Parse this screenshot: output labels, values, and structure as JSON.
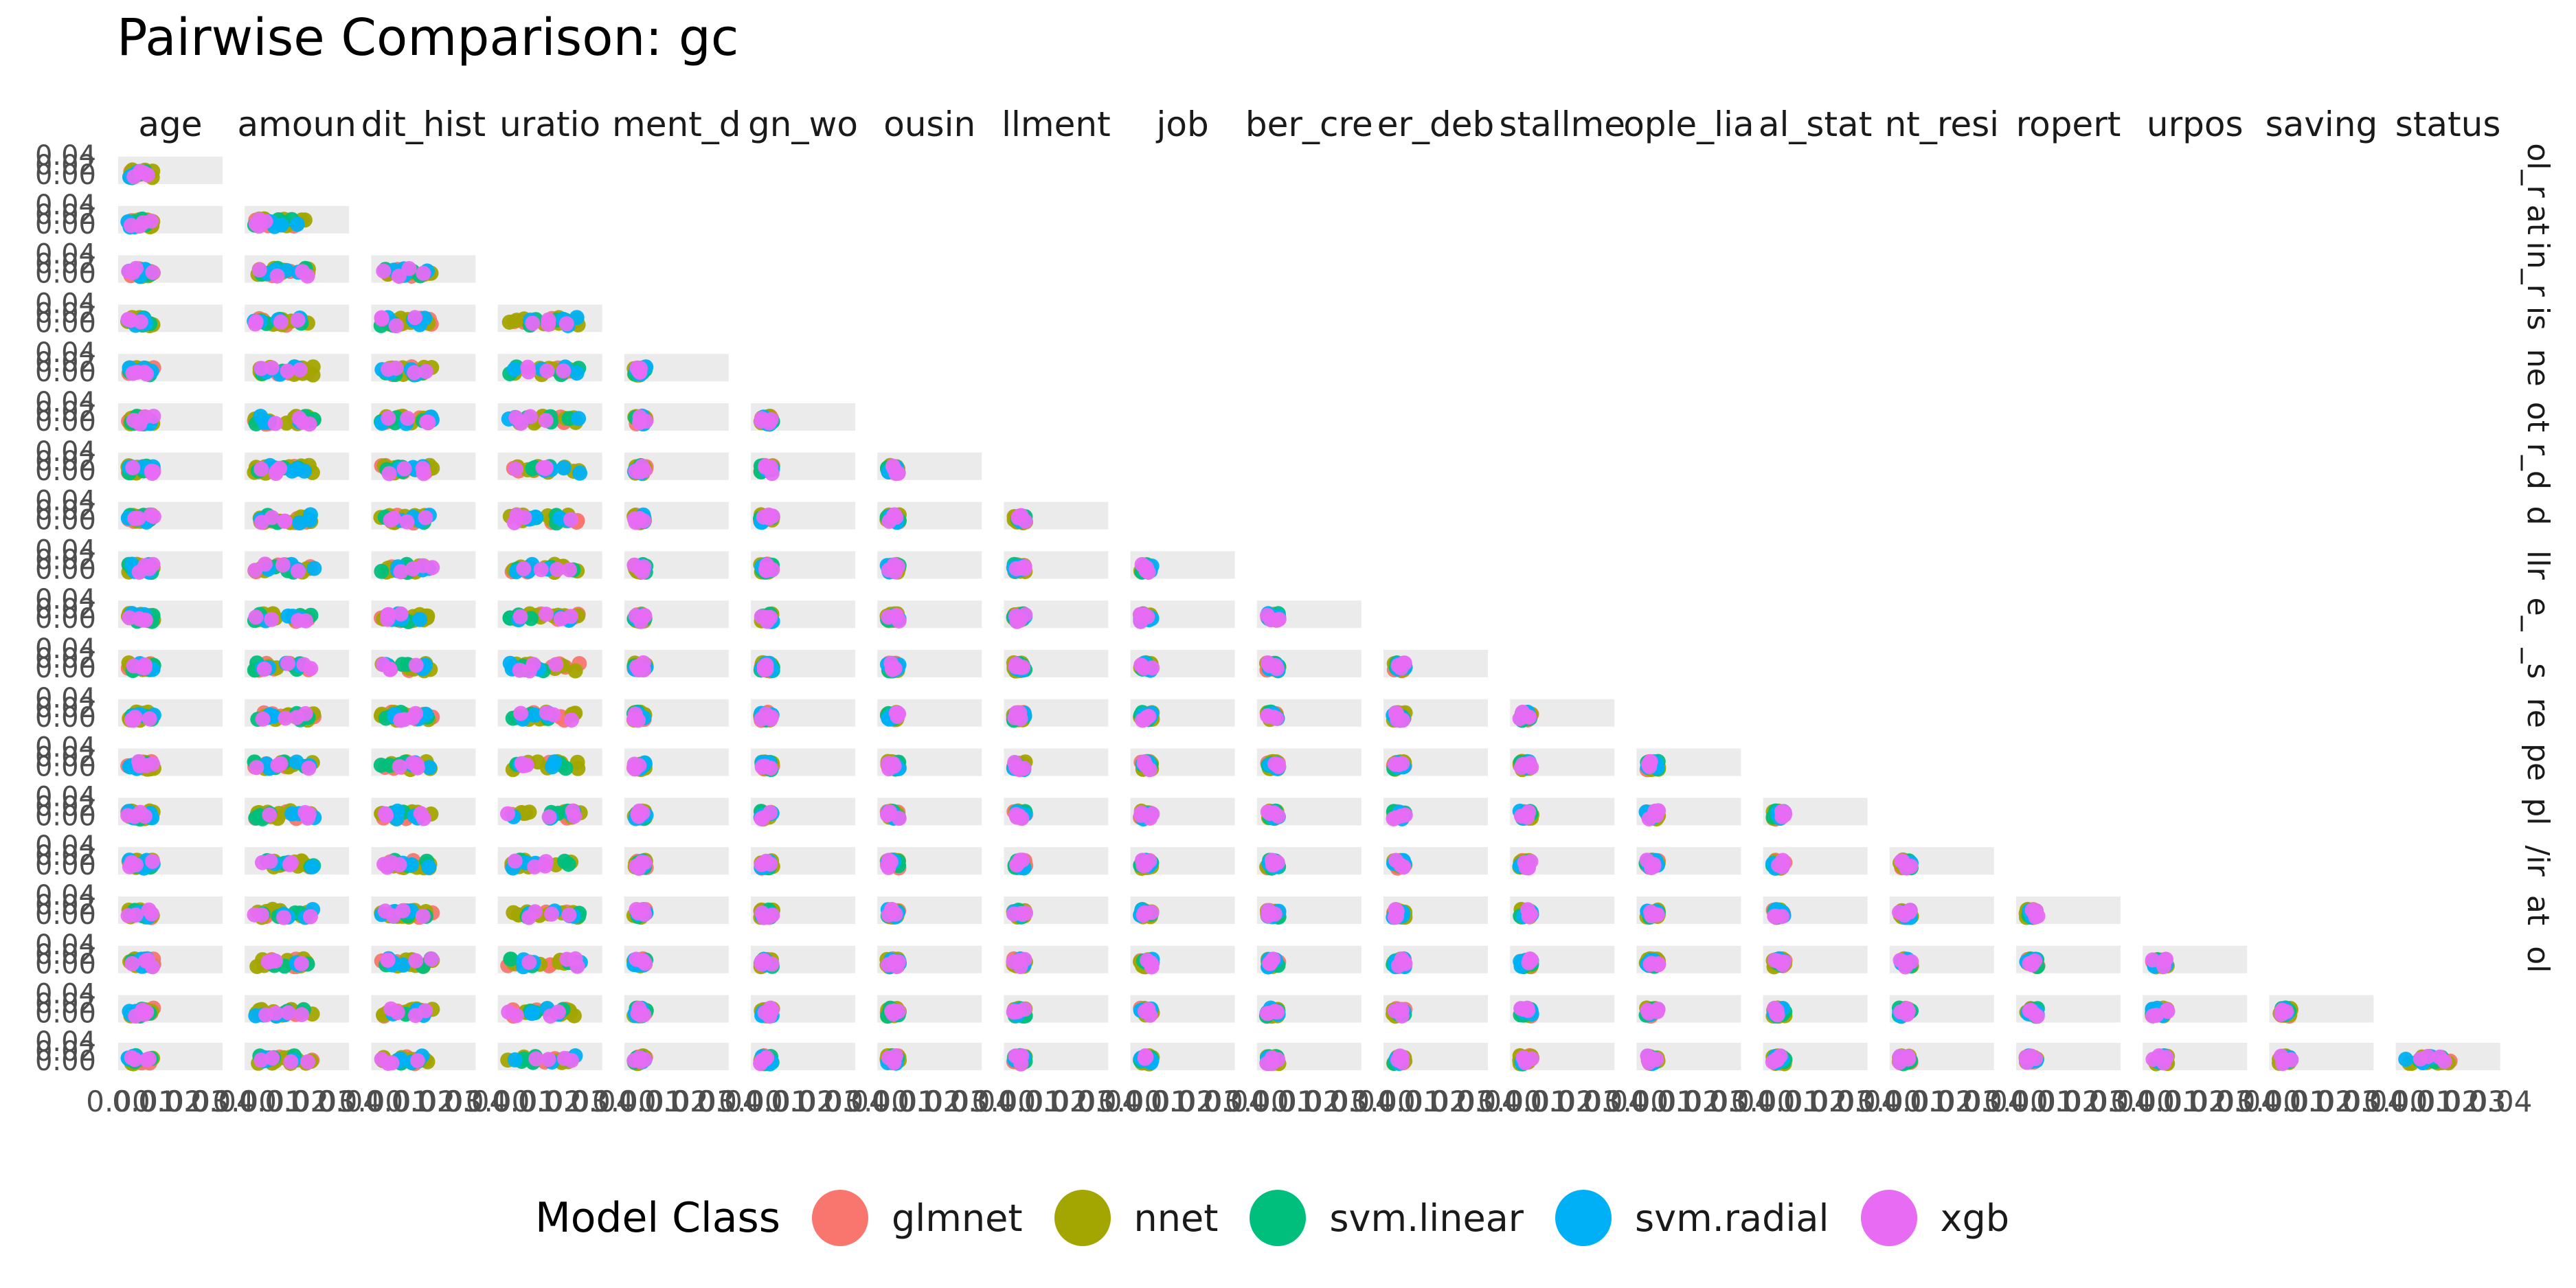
{
  "chart_data": {
    "type": "scatter",
    "title": "Pairwise Comparison: gc",
    "variables_top": [
      "age",
      "amount",
      "credit_history",
      "duration",
      "employment_duration",
      "foreign_worker",
      "housing",
      "installment_rate",
      "job",
      "number_credits",
      "other_debtors",
      "other_installment_plans",
      "people_liable",
      "personal_status_sex",
      "present_residence",
      "property",
      "purpose",
      "savings",
      "status"
    ],
    "column_strip_labels": [
      "age",
      "amoun",
      "dit_hist",
      "uratio",
      "ment_d",
      "gn_wo",
      "ousin",
      "llment",
      "job",
      "ber_cre",
      "er_deb",
      "stallme",
      "ople_lia",
      "al_stat",
      "nt_resi",
      "ropert",
      "urpos",
      "saving",
      "status"
    ],
    "row_strip_labels": [
      "ol_r",
      "at",
      "in_r",
      "is",
      "ne",
      "ot",
      "r_d",
      "d",
      "llr",
      "e_",
      "_s",
      "re",
      "pe",
      "pl",
      "/ir",
      "at",
      "ol",
      "",
      ""
    ],
    "y_tick_labels": [
      "0.00",
      "0.02",
      "0.04"
    ],
    "x_tick_labels": [
      "0.00",
      "0.01",
      "0.02",
      "0.03",
      "0.04"
    ],
    "ylim": [
      0,
      0.04
    ],
    "xlim": [
      0,
      0.04
    ],
    "grid": true,
    "legend_position": "bottom",
    "legend": {
      "title": "Model Class",
      "items": [
        {
          "label": "glmnet",
          "color": "#F8766D"
        },
        {
          "label": "nnet",
          "color": "#A3A500"
        },
        {
          "label": "svm.linear",
          "color": "#00BF7D"
        },
        {
          "label": "svm.radial",
          "color": "#00B0F6"
        },
        {
          "label": "xgb",
          "color": "#E76BF3"
        }
      ]
    },
    "panel_background": "#EBEBEB",
    "column_point_spread": [
      0.01,
      0.023,
      0.02,
      0.028,
      0.004,
      0.002,
      0.003,
      0.004,
      0.004,
      0.003,
      0.004,
      0.003,
      0.002,
      0.004,
      0.004,
      0.004,
      0.006,
      0.004,
      0.018
    ]
  }
}
